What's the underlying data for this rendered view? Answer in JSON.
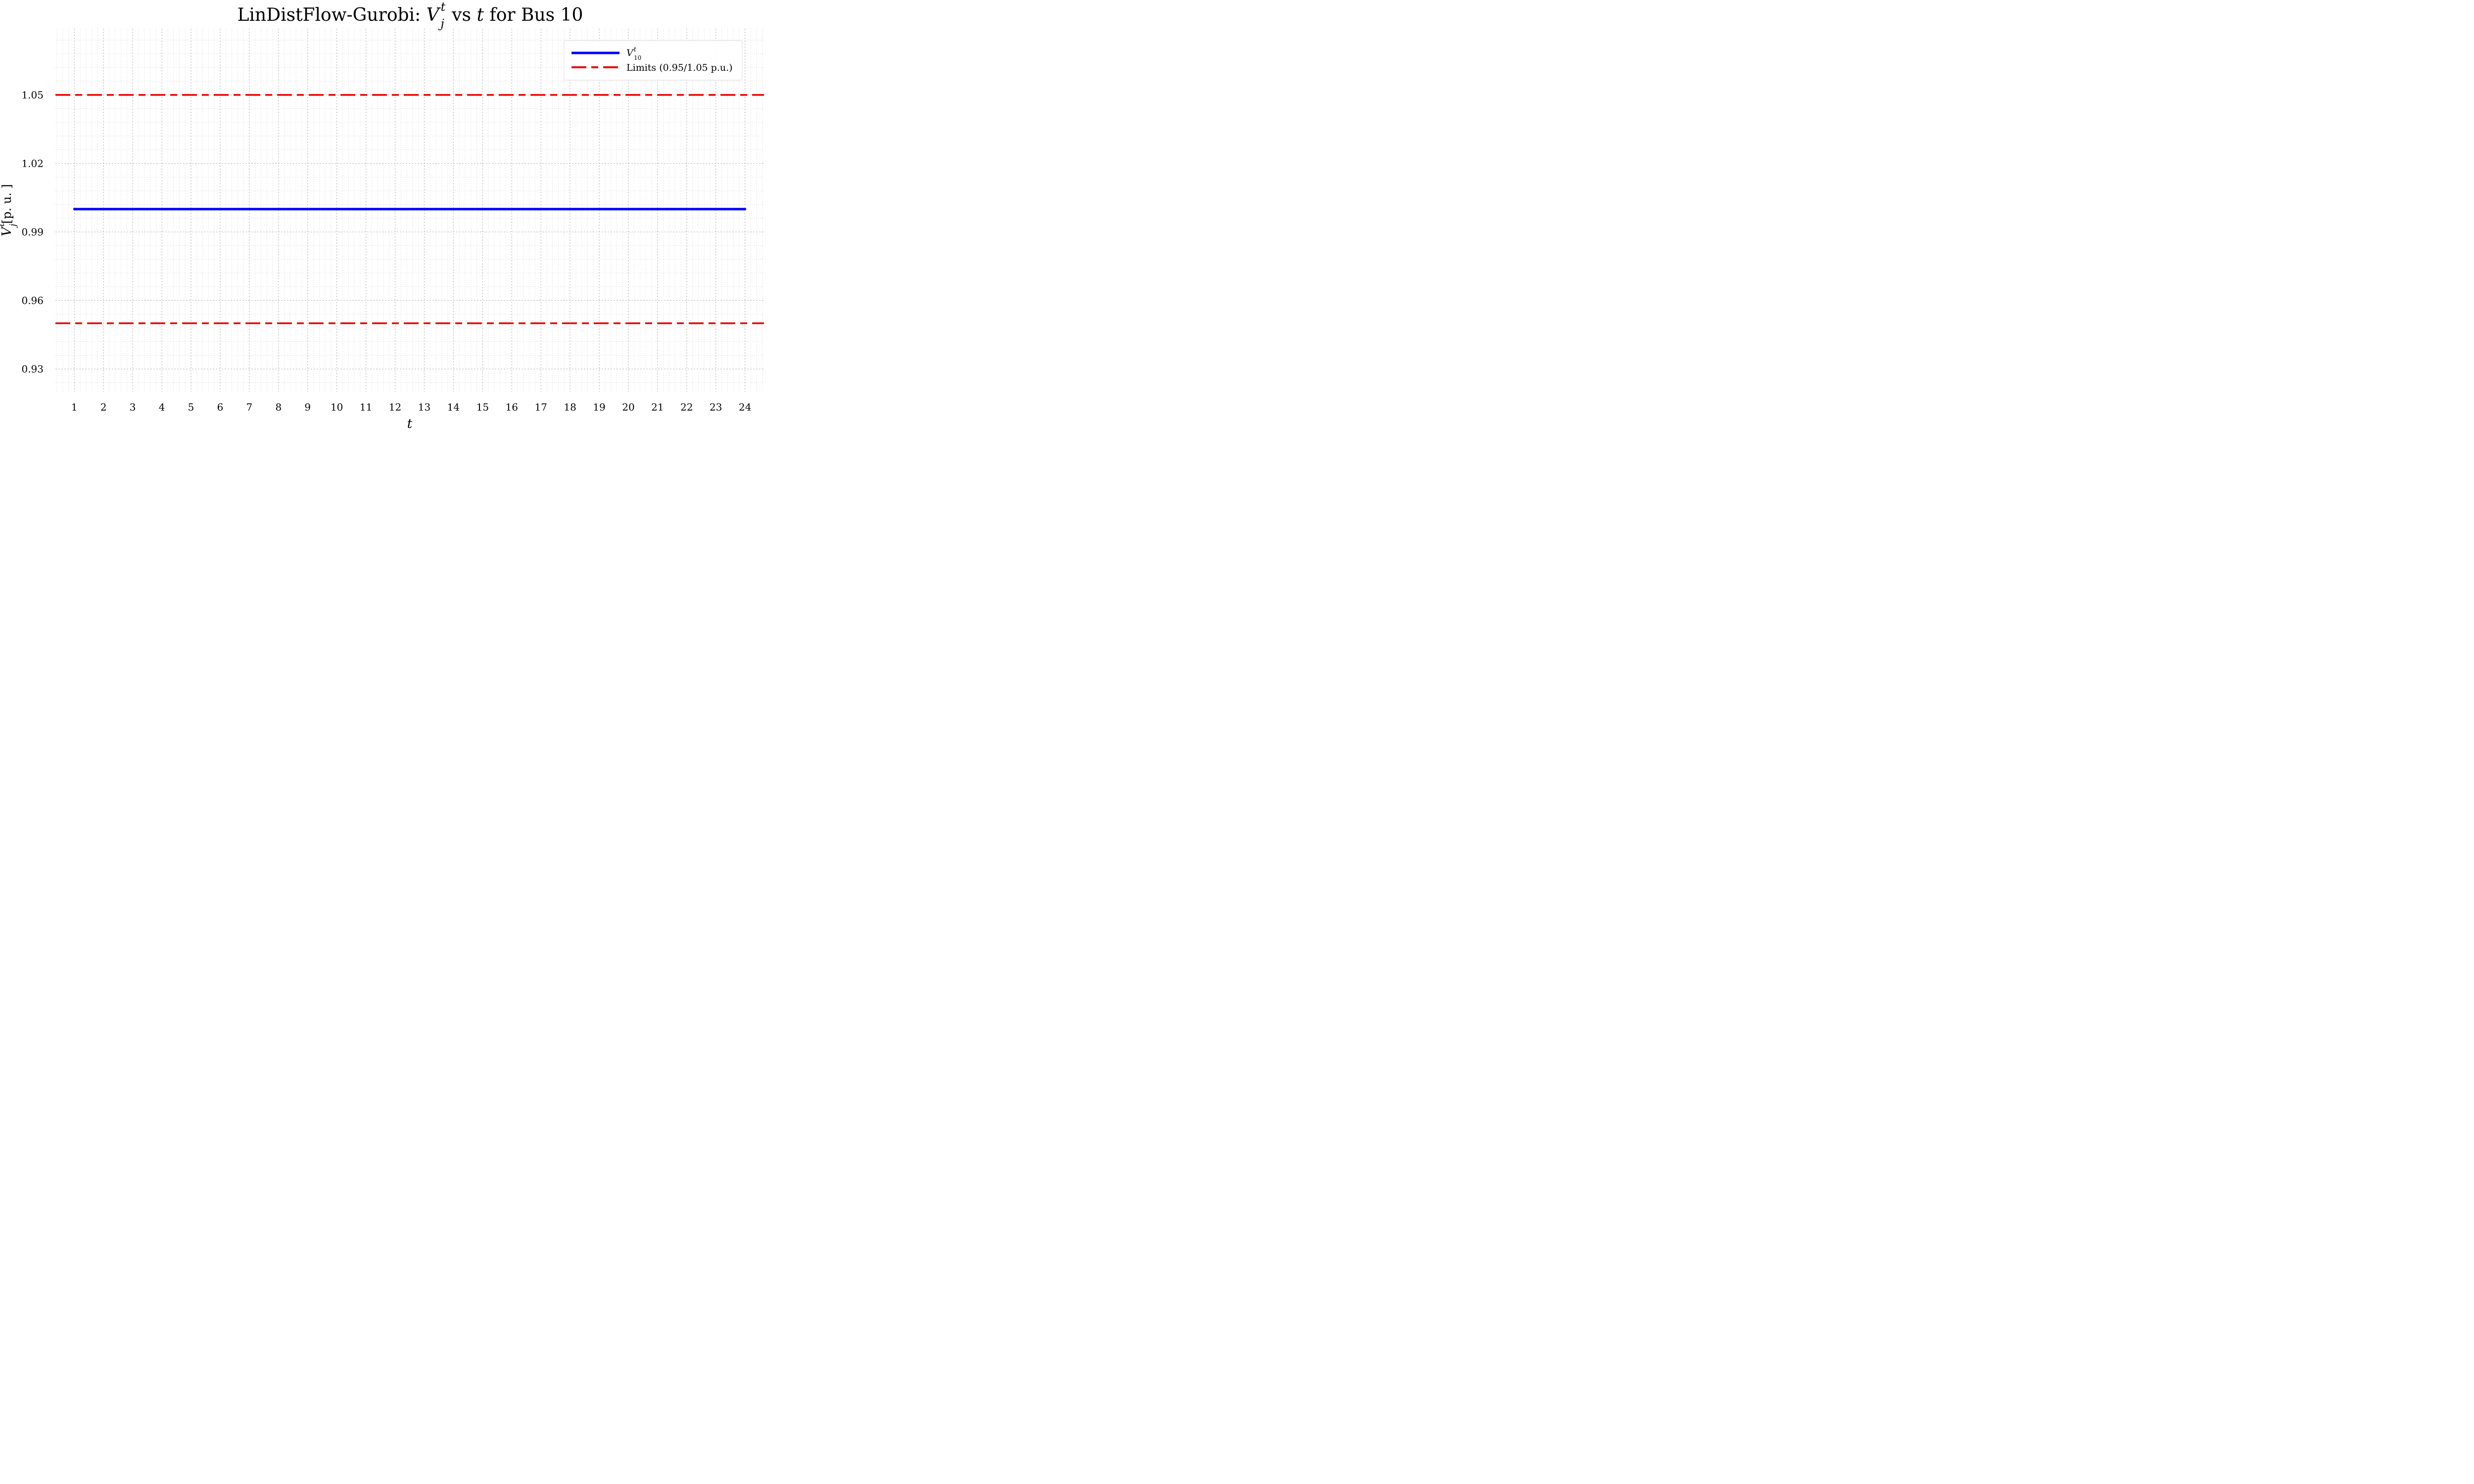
{
  "chart_data": {
    "type": "line",
    "title": {
      "prefix": "LinDistFlow-Gurobi: ",
      "var": "V",
      "sup": "t",
      "sub": "j",
      "middle": " vs ",
      "tvar": "t",
      "suffix": " for Bus 10"
    },
    "xlabel": "t",
    "ylabel": {
      "var": "V",
      "sup": "t",
      "sub": "j",
      "unit": "[p. u. ]"
    },
    "x": [
      1,
      2,
      3,
      4,
      5,
      6,
      7,
      8,
      9,
      10,
      11,
      12,
      13,
      14,
      15,
      16,
      17,
      18,
      19,
      20,
      21,
      22,
      23,
      24
    ],
    "xlim": [
      0.35,
      24.65
    ],
    "ylim": [
      0.92,
      1.079
    ],
    "yticks": [
      0.93,
      0.96,
      0.99,
      1.02,
      1.05
    ],
    "ytick_labels": [
      "0.93",
      "0.96",
      "0.99",
      "1.02",
      "1.05"
    ],
    "grid": true,
    "legend_position": "top-right",
    "series": [
      {
        "legend_var": "V",
        "legend_sup": "t",
        "legend_sub": "10",
        "style": "solid",
        "color": "#0000ff",
        "values": [
          1.0,
          1.0,
          1.0,
          1.0,
          1.0,
          1.0,
          1.0,
          1.0,
          1.0,
          1.0,
          1.0,
          1.0,
          1.0,
          1.0,
          1.0,
          1.0,
          1.0,
          1.0,
          1.0,
          1.0,
          1.0,
          1.0,
          1.0,
          1.0
        ]
      }
    ],
    "limits": {
      "legend_label": "Limits (0.95/1.05 p.u.)",
      "style": "dashed",
      "color": "#ee0000",
      "values": [
        0.95,
        1.05
      ]
    }
  }
}
